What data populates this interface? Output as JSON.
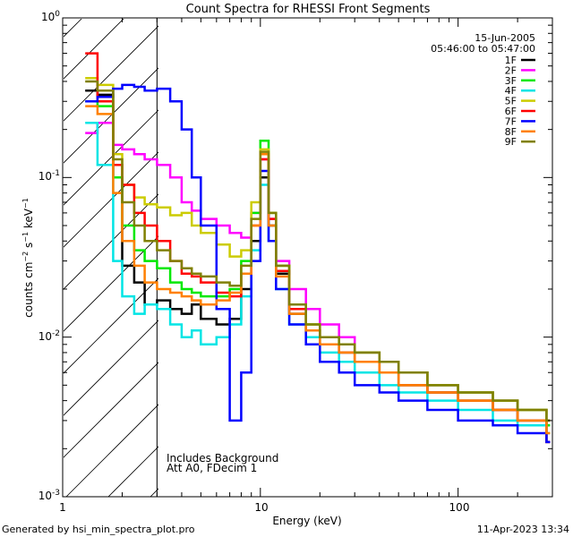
{
  "chart_data": {
    "type": "line",
    "title": "Count Spectra for RHESSI Front Segments",
    "xlabel": "Energy (keV)",
    "ylabel": "counts cm-2 s-1 keV-1",
    "xscale": "log",
    "yscale": "log",
    "xlim": [
      1,
      300
    ],
    "ylim": [
      0.001,
      1
    ],
    "x_tick_labels": [
      "1",
      "10",
      "100"
    ],
    "y_tick_labels": [
      {
        "base": "10",
        "exp": "-3",
        "value": 0.001
      },
      {
        "base": "10",
        "exp": "-2",
        "value": 0.01
      },
      {
        "base": "10",
        "exp": "-1",
        "value": 0.1
      },
      {
        "base": "10",
        "exp": "0",
        "value": 1
      }
    ],
    "date": "15-Jun-2005",
    "time_range": "05:46:00 to 05:47:00",
    "hatched_region_xmax": 3,
    "annotations": [
      "Includes Background",
      "Att A0, FDecim 1"
    ],
    "legend_position": "top-right",
    "footer_left": "Generated by hsi_min_spectra_plot.pro",
    "footer_right": "11-Apr-2023 13:34",
    "series": [
      {
        "name": "1F",
        "color": "#000000",
        "x": [
          1.3,
          1.5,
          1.8,
          2.0,
          2.3,
          2.6,
          3.0,
          3.5,
          4.0,
          4.5,
          5.0,
          6.0,
          7.0,
          8.0,
          9.0,
          10.0,
          11.0,
          12.0,
          14.0,
          17.0,
          20.0,
          25.0,
          30.0,
          40.0,
          50.0,
          70.0,
          100.0,
          150.0,
          200.0,
          280.0
        ],
        "values": [
          0.35,
          0.33,
          0.1,
          0.028,
          0.022,
          0.016,
          0.017,
          0.015,
          0.014,
          0.016,
          0.013,
          0.012,
          0.013,
          0.02,
          0.04,
          0.1,
          0.05,
          0.025,
          0.014,
          0.011,
          0.009,
          0.008,
          0.007,
          0.006,
          0.005,
          0.0045,
          0.004,
          0.0035,
          0.003,
          0.0022
        ]
      },
      {
        "name": "2F",
        "color": "#ff00ff",
        "x": [
          1.3,
          1.5,
          1.8,
          2.0,
          2.3,
          2.6,
          3.0,
          3.5,
          4.0,
          4.5,
          5.0,
          6.0,
          7.0,
          8.0,
          9.0,
          10.0,
          11.0,
          12.0,
          14.0,
          17.0,
          20.0,
          25.0,
          30.0,
          40.0,
          50.0,
          70.0,
          100.0,
          150.0,
          200.0,
          280.0
        ],
        "values": [
          0.19,
          0.22,
          0.16,
          0.15,
          0.14,
          0.13,
          0.12,
          0.1,
          0.07,
          0.062,
          0.055,
          0.05,
          0.045,
          0.042,
          0.06,
          0.13,
          0.055,
          0.03,
          0.02,
          0.015,
          0.012,
          0.01,
          0.008,
          0.007,
          0.006,
          0.005,
          0.0045,
          0.004,
          0.0035,
          0.003
        ]
      },
      {
        "name": "3F",
        "color": "#00e800",
        "x": [
          1.3,
          1.5,
          1.8,
          2.0,
          2.3,
          2.6,
          3.0,
          3.5,
          4.0,
          4.5,
          5.0,
          6.0,
          7.0,
          8.0,
          9.0,
          10.0,
          11.0,
          12.0,
          14.0,
          17.0,
          20.0,
          25.0,
          30.0,
          40.0,
          50.0,
          70.0,
          100.0,
          150.0,
          200.0,
          280.0
        ],
        "values": [
          0.3,
          0.28,
          0.1,
          0.05,
          0.035,
          0.03,
          0.027,
          0.022,
          0.02,
          0.019,
          0.018,
          0.018,
          0.02,
          0.03,
          0.06,
          0.17,
          0.06,
          0.028,
          0.016,
          0.012,
          0.01,
          0.009,
          0.008,
          0.007,
          0.006,
          0.005,
          0.0045,
          0.004,
          0.0035,
          0.0028
        ]
      },
      {
        "name": "4F",
        "color": "#00e5e5",
        "x": [
          1.3,
          1.5,
          1.8,
          2.0,
          2.3,
          2.6,
          3.0,
          3.5,
          4.0,
          4.5,
          5.0,
          6.0,
          7.0,
          8.0,
          9.0,
          10.0,
          11.0,
          12.0,
          14.0,
          17.0,
          20.0,
          25.0,
          30.0,
          40.0,
          50.0,
          70.0,
          100.0,
          150.0,
          200.0,
          280.0
        ],
        "values": [
          0.22,
          0.12,
          0.03,
          0.018,
          0.014,
          0.016,
          0.015,
          0.012,
          0.01,
          0.011,
          0.009,
          0.01,
          0.012,
          0.018,
          0.035,
          0.09,
          0.04,
          0.02,
          0.012,
          0.01,
          0.008,
          0.007,
          0.006,
          0.005,
          0.0045,
          0.004,
          0.0035,
          0.003,
          0.0028,
          0.0025
        ]
      },
      {
        "name": "5F",
        "color": "#cccc00",
        "x": [
          1.3,
          1.5,
          1.8,
          2.0,
          2.3,
          2.6,
          3.0,
          3.5,
          4.0,
          4.5,
          5.0,
          6.0,
          7.0,
          8.0,
          9.0,
          10.0,
          11.0,
          12.0,
          14.0,
          17.0,
          20.0,
          25.0,
          30.0,
          40.0,
          50.0,
          70.0,
          100.0,
          150.0,
          200.0,
          280.0
        ],
        "values": [
          0.42,
          0.38,
          0.14,
          0.09,
          0.075,
          0.068,
          0.065,
          0.058,
          0.06,
          0.05,
          0.045,
          0.038,
          0.032,
          0.035,
          0.07,
          0.15,
          0.06,
          0.028,
          0.016,
          0.012,
          0.01,
          0.009,
          0.008,
          0.007,
          0.006,
          0.005,
          0.0045,
          0.004,
          0.0035,
          0.003
        ]
      },
      {
        "name": "6F",
        "color": "#ff0000",
        "x": [
          1.3,
          1.5,
          1.8,
          2.0,
          2.3,
          2.6,
          3.0,
          3.5,
          4.0,
          4.5,
          5.0,
          6.0,
          7.0,
          8.0,
          9.0,
          10.0,
          11.0,
          12.0,
          14.0,
          17.0,
          20.0,
          25.0,
          30.0,
          40.0,
          50.0,
          70.0,
          100.0,
          150.0,
          200.0,
          280.0
        ],
        "values": [
          0.6,
          0.3,
          0.12,
          0.09,
          0.06,
          0.05,
          0.04,
          0.03,
          0.025,
          0.024,
          0.022,
          0.019,
          0.018,
          0.025,
          0.05,
          0.13,
          0.055,
          0.026,
          0.015,
          0.011,
          0.009,
          0.008,
          0.007,
          0.006,
          0.005,
          0.0045,
          0.004,
          0.0035,
          0.003,
          0.0022
        ]
      },
      {
        "name": "7F",
        "color": "#0000ff",
        "x": [
          1.3,
          1.5,
          1.8,
          2.0,
          2.3,
          2.6,
          3.0,
          3.5,
          4.0,
          4.5,
          5.0,
          6.0,
          7.0,
          8.0,
          9.0,
          10.0,
          11.0,
          12.0,
          14.0,
          17.0,
          20.0,
          25.0,
          30.0,
          40.0,
          50.0,
          70.0,
          100.0,
          150.0,
          200.0,
          280.0
        ],
        "values": [
          0.3,
          0.32,
          0.36,
          0.38,
          0.37,
          0.35,
          0.36,
          0.3,
          0.2,
          0.1,
          0.05,
          0.015,
          0.003,
          0.006,
          0.03,
          0.11,
          0.04,
          0.02,
          0.012,
          0.009,
          0.007,
          0.006,
          0.005,
          0.0045,
          0.004,
          0.0035,
          0.003,
          0.0028,
          0.0025,
          0.0022
        ]
      },
      {
        "name": "8F",
        "color": "#ff8000",
        "x": [
          1.3,
          1.5,
          1.8,
          2.0,
          2.3,
          2.6,
          3.0,
          3.5,
          4.0,
          4.5,
          5.0,
          6.0,
          7.0,
          8.0,
          9.0,
          10.0,
          11.0,
          12.0,
          14.0,
          17.0,
          20.0,
          25.0,
          30.0,
          40.0,
          50.0,
          70.0,
          100.0,
          150.0,
          200.0,
          280.0
        ],
        "values": [
          0.28,
          0.25,
          0.08,
          0.04,
          0.028,
          0.022,
          0.02,
          0.019,
          0.018,
          0.017,
          0.016,
          0.017,
          0.019,
          0.025,
          0.05,
          0.14,
          0.05,
          0.024,
          0.014,
          0.011,
          0.009,
          0.008,
          0.007,
          0.006,
          0.005,
          0.0045,
          0.004,
          0.0035,
          0.003,
          0.0025
        ]
      },
      {
        "name": "9F",
        "color": "#808000",
        "x": [
          1.3,
          1.5,
          1.8,
          2.0,
          2.3,
          2.6,
          3.0,
          3.5,
          4.0,
          4.5,
          5.0,
          6.0,
          7.0,
          8.0,
          9.0,
          10.0,
          11.0,
          12.0,
          14.0,
          17.0,
          20.0,
          25.0,
          30.0,
          40.0,
          50.0,
          70.0,
          100.0,
          150.0,
          200.0,
          280.0
        ],
        "values": [
          0.4,
          0.35,
          0.13,
          0.07,
          0.05,
          0.04,
          0.035,
          0.03,
          0.027,
          0.025,
          0.024,
          0.022,
          0.021,
          0.028,
          0.055,
          0.145,
          0.06,
          0.028,
          0.016,
          0.012,
          0.01,
          0.009,
          0.008,
          0.007,
          0.006,
          0.005,
          0.0045,
          0.004,
          0.0035,
          0.003
        ]
      }
    ]
  }
}
